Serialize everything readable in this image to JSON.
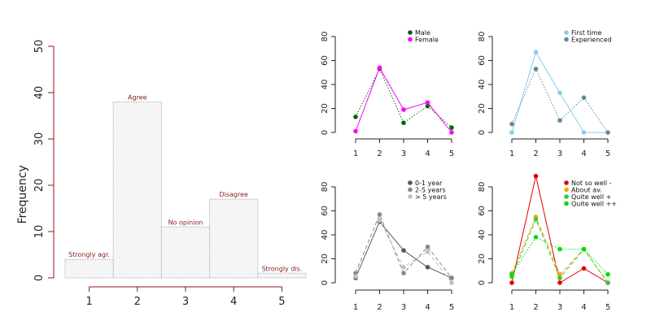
{
  "chart_data": [
    {
      "type": "bar",
      "ylabel": "Frequency",
      "categories": [
        "1",
        "2",
        "3",
        "4",
        "5"
      ],
      "values": [
        4,
        38,
        11,
        17,
        1
      ],
      "bar_labels": [
        "Strongly agr.",
        "Agree",
        "No opinion",
        "Disagree",
        "Strongly dis."
      ],
      "yticks": [
        0,
        10,
        20,
        30,
        40,
        50
      ],
      "ylim": [
        0,
        50
      ],
      "label_color": "#8b1a1a",
      "bar_fill": "#f5f5f5",
      "bar_stroke": "#bebebe",
      "axis_color": "#8b1a1a"
    },
    {
      "type": "line",
      "x": [
        1,
        2,
        3,
        4,
        5
      ],
      "ylim": [
        0,
        80
      ],
      "yticks": [
        0,
        20,
        40,
        60,
        80
      ],
      "legend_position": "top-right",
      "series": [
        {
          "name": "Male",
          "values": [
            13,
            53,
            8,
            22,
            4
          ],
          "color": "#006400",
          "dash": "dotted"
        },
        {
          "name": "Female",
          "values": [
            1,
            54,
            19,
            25,
            0
          ],
          "color": "#ff00ff",
          "dash": "solid"
        }
      ]
    },
    {
      "type": "line",
      "x": [
        1,
        2,
        3,
        4,
        5
      ],
      "ylim": [
        0,
        80
      ],
      "yticks": [
        0,
        20,
        40,
        60,
        80
      ],
      "legend_position": "top-right",
      "series": [
        {
          "name": "First time",
          "values": [
            0,
            67,
            33,
            0,
            0
          ],
          "color": "#87ceeb",
          "dash": "solid"
        },
        {
          "name": "Experienced",
          "values": [
            7,
            53,
            10,
            29,
            0
          ],
          "color": "#5f8b99",
          "dash": "dotted"
        }
      ]
    },
    {
      "type": "line",
      "x": [
        1,
        2,
        3,
        4,
        5
      ],
      "ylim": [
        0,
        80
      ],
      "yticks": [
        0,
        20,
        40,
        60,
        80
      ],
      "legend_position": "top-right",
      "series": [
        {
          "name": "0-1 year",
          "values": [
            4,
            51,
            27,
            13,
            4
          ],
          "color": "#555555",
          "dash": "solid"
        },
        {
          "name": "2-5 years",
          "values": [
            8,
            57,
            8,
            30,
            4
          ],
          "color": "#888888",
          "dash": "dashed"
        },
        {
          "name": "> 5 years",
          "values": [
            5,
            52,
            13,
            26,
            0
          ],
          "color": "#c0c0c0",
          "dash": "dashed"
        }
      ]
    },
    {
      "type": "line",
      "x": [
        1,
        2,
        3,
        4,
        5
      ],
      "ylim": [
        0,
        80
      ],
      "yticks": [
        0,
        20,
        40,
        60,
        80
      ],
      "legend_position": "top-right",
      "series": [
        {
          "name": "Not so well -",
          "values": [
            0,
            89,
            0,
            12,
            0
          ],
          "color": "#e00000",
          "dash": "solid"
        },
        {
          "name": "About av.",
          "values": [
            8,
            55,
            7,
            28,
            0
          ],
          "color": "#ffa500",
          "dash": "dashed"
        },
        {
          "name": "Quite well +",
          "values": [
            5,
            53,
            4,
            28,
            0
          ],
          "color": "#2ecc40",
          "dash": "dashed"
        },
        {
          "name": "Quite well ++",
          "values": [
            7,
            38,
            28,
            28,
            7
          ],
          "color": "#00dd00",
          "dash": "dotted"
        }
      ]
    }
  ]
}
